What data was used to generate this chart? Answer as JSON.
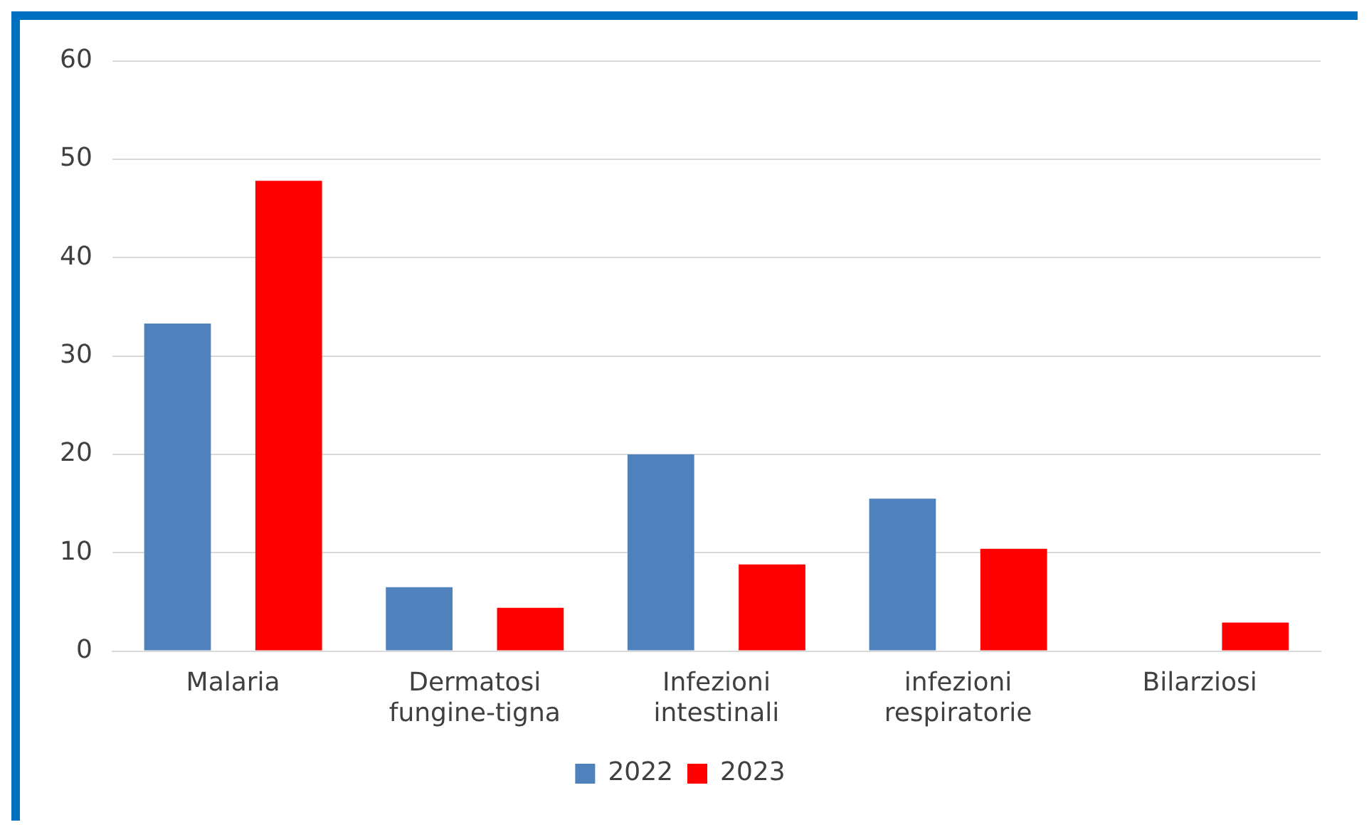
{
  "chart_data": {
    "type": "bar",
    "categories": [
      "Malaria",
      "Dermatosi fungine-tigna",
      "Infezioni intestinali",
      "infezioni respiratorie",
      "Bilarziosi"
    ],
    "series": [
      {
        "name": "2022",
        "color": "#4f81bd",
        "values": [
          33.3,
          6.5,
          20.0,
          15.5,
          null
        ]
      },
      {
        "name": "2023",
        "color": "#ff0000",
        "values": [
          47.8,
          4.4,
          8.8,
          10.4,
          2.9
        ]
      }
    ],
    "ylim": [
      0,
      60
    ],
    "yticks": [
      0,
      10,
      20,
      30,
      40,
      50,
      60
    ],
    "grid": "y",
    "legend": "bottom"
  }
}
